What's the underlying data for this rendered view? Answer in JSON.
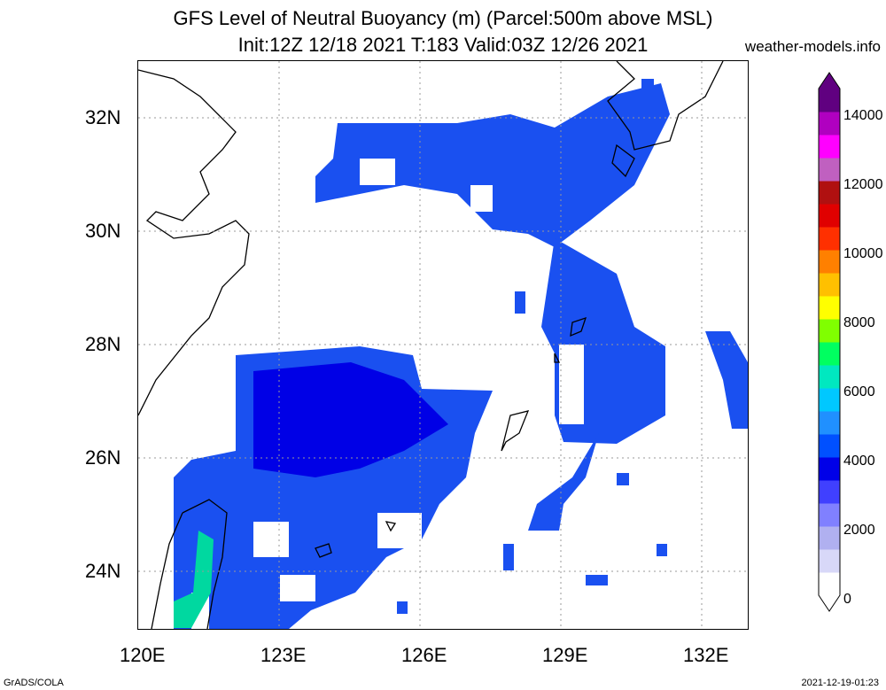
{
  "title_line1": "GFS Level of Neutral Buoyancy (m) (Parcel:500m above MSL)",
  "title_line2": "Init:12Z 12/18 2021 T:183 Valid:03Z 12/26 2021",
  "site": "weather-models.info",
  "lat_labels": [
    "32N",
    "30N",
    "28N",
    "26N",
    "24N"
  ],
  "lon_labels": [
    "120E",
    "123E",
    "126E",
    "129E",
    "132E"
  ],
  "colorbar": {
    "labels": [
      "14000",
      "12000",
      "10000",
      "8000",
      "6000",
      "4000",
      "2000",
      "0"
    ],
    "colors": [
      "#ffffff",
      "#d8d8f8",
      "#b0b0f0",
      "#8080ff",
      "#4040ff",
      "#0000e8",
      "#0050ff",
      "#2090ff",
      "#00c8ff",
      "#00e8c0",
      "#00ff60",
      "#80ff00",
      "#ffff00",
      "#ffc000",
      "#ff8000",
      "#ff3000",
      "#e00000",
      "#b01010",
      "#c060c0",
      "#ff00ff",
      "#b000c0",
      "#600080"
    ]
  },
  "footer_left": "GrADS/COLA",
  "footer_right": "2021-12-19-01:23"
}
